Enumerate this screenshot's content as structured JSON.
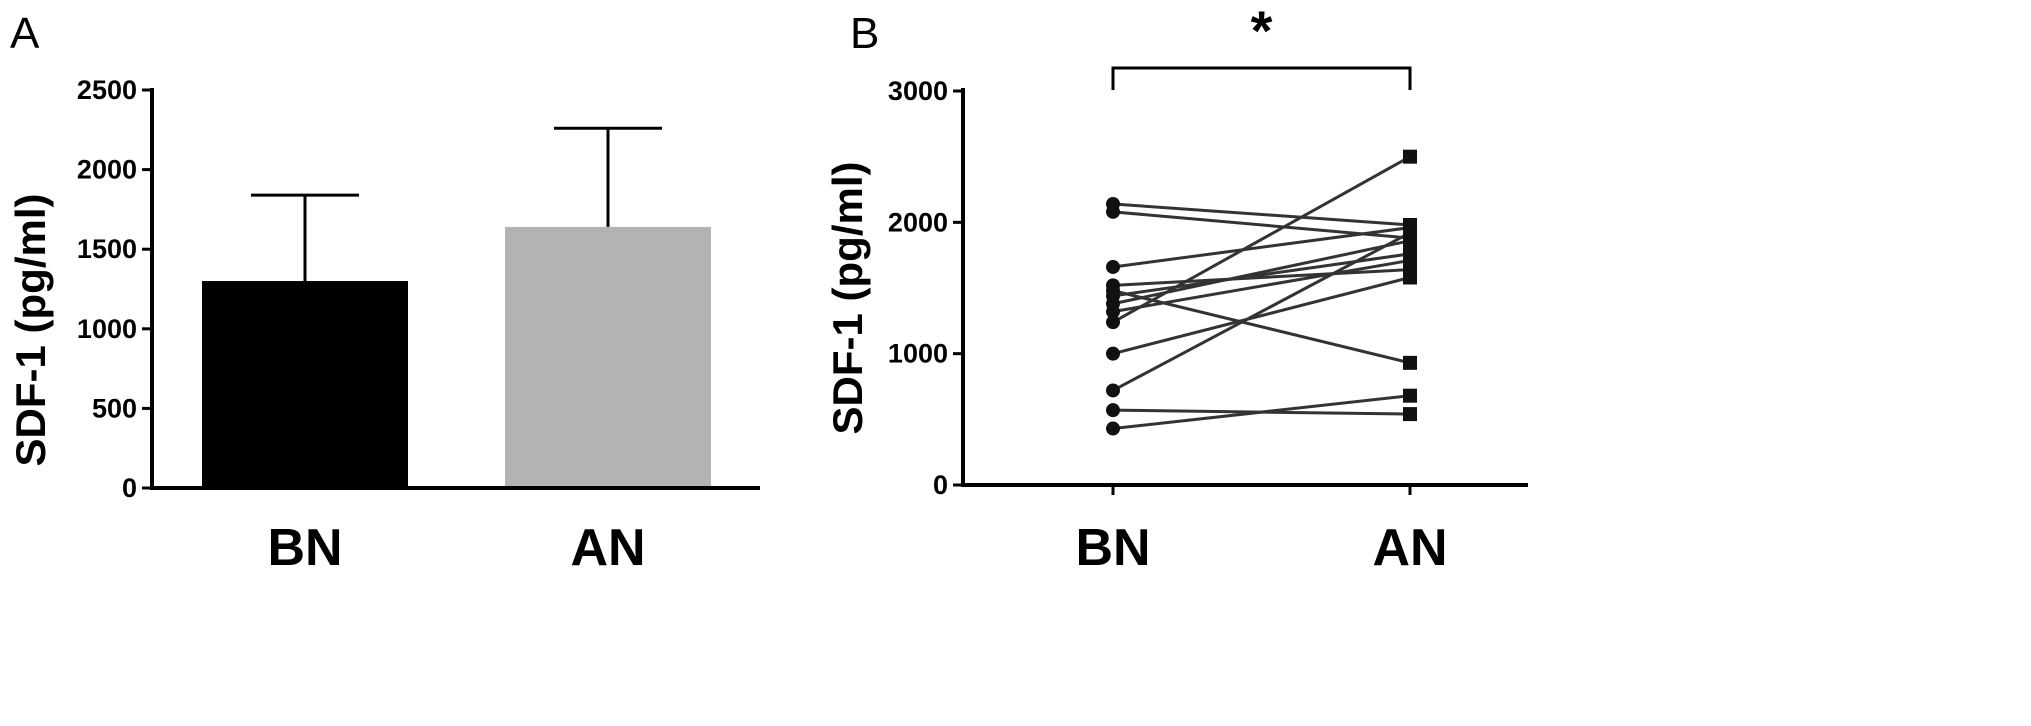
{
  "chart_data": [
    {
      "panel": "A",
      "type": "bar",
      "categories": [
        "BN",
        "AN"
      ],
      "values": [
        1300,
        1640
      ],
      "error_upper": [
        1840,
        2260
      ],
      "colors": [
        "#000000",
        "#b3b3b3"
      ],
      "ylabel": "SDF-1 (pg/ml)",
      "ylim": [
        0,
        2500
      ],
      "yticks": [
        0,
        500,
        1000,
        1500,
        2000,
        2500
      ],
      "grid": false
    },
    {
      "panel": "B",
      "type": "line",
      "categories": [
        "BN",
        "AN"
      ],
      "ylabel": "SDF-1 (pg/ml)",
      "ylim": [
        0,
        3000
      ],
      "yticks": [
        0,
        1000,
        2000,
        3000
      ],
      "grid": false,
      "significance": {
        "between": [
          "BN",
          "AN"
        ],
        "label": "*"
      },
      "pairs": [
        [
          2140,
          1980
        ],
        [
          2080,
          1880
        ],
        [
          1660,
          1960
        ],
        [
          1520,
          1640
        ],
        [
          1480,
          930
        ],
        [
          1440,
          1760
        ],
        [
          1380,
          1860
        ],
        [
          1320,
          1710
        ],
        [
          1240,
          2500
        ],
        [
          1000,
          1580
        ],
        [
          720,
          1920
        ],
        [
          570,
          540
        ],
        [
          430,
          680
        ]
      ],
      "marker_before": "circle",
      "marker_after": "square"
    }
  ]
}
